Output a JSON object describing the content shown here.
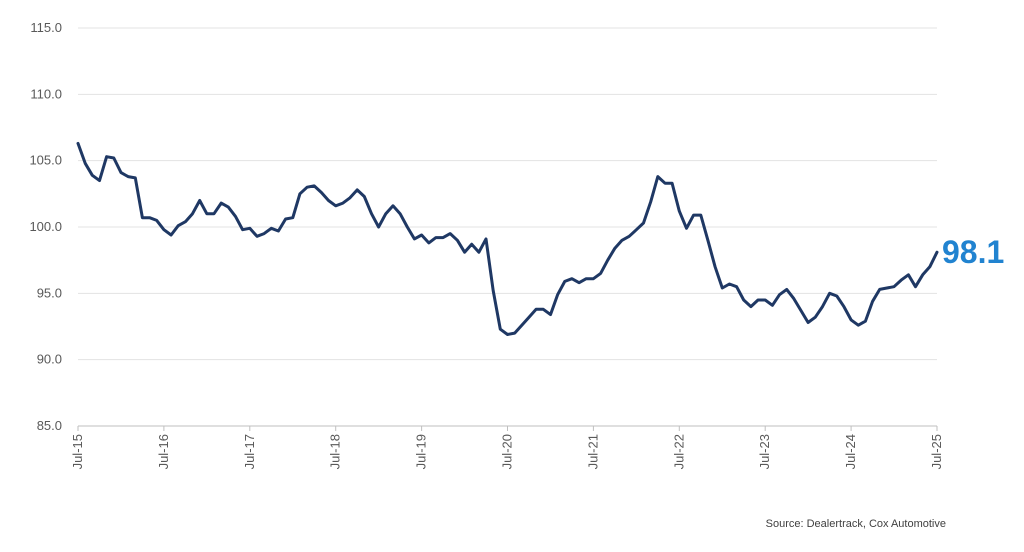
{
  "chart_data": {
    "type": "line",
    "title": "",
    "xlabel": "",
    "ylabel": "",
    "ylim": [
      85,
      115
    ],
    "yticks": [
      "115.0",
      "110.0",
      "105.0",
      "100.0",
      "95.0",
      "90.0",
      "85.0"
    ],
    "x_tick_labels": [
      "Jul-15",
      "Jul-16",
      "Jul-17",
      "Jul-18",
      "Jul-19",
      "Jul-20",
      "Jul-21",
      "Jul-22",
      "Jul-23",
      "Jul-24",
      "Jul-25"
    ],
    "x_start": "Jul-15",
    "x_end": "Jul-25",
    "grid": true,
    "legend": "none",
    "line_color": "#1f3864",
    "callout_color": "#2183d0",
    "last_value_label": "98.1",
    "series": [
      {
        "values": [
          106.3,
          104.8,
          103.9,
          103.5,
          105.3,
          105.2,
          104.1,
          103.8,
          103.7,
          100.7,
          100.7,
          100.5,
          99.8,
          99.4,
          100.1,
          100.4,
          101.0,
          102.0,
          101.0,
          101.0,
          101.8,
          101.5,
          100.8,
          99.8,
          99.9,
          99.3,
          99.5,
          99.9,
          99.7,
          100.6,
          100.7,
          102.5,
          103.0,
          103.1,
          102.6,
          102.0,
          101.6,
          101.8,
          102.2,
          102.8,
          102.3,
          101.0,
          100.0,
          101.0,
          101.6,
          101.0,
          100.0,
          99.1,
          99.4,
          98.8,
          99.2,
          99.2,
          99.5,
          99.0,
          98.1,
          98.7,
          98.1,
          99.1,
          95.2,
          92.3,
          91.9,
          92.0,
          92.6,
          93.2,
          93.8,
          93.8,
          93.4,
          94.9,
          95.9,
          96.1,
          95.8,
          96.1,
          96.1,
          96.5,
          97.5,
          98.4,
          99.0,
          99.3,
          99.8,
          100.3,
          101.9,
          103.8,
          103.3,
          103.3,
          101.2,
          99.9,
          100.9,
          100.9,
          99.0,
          97.0,
          95.4,
          95.7,
          95.5,
          94.5,
          94.0,
          94.5,
          94.5,
          94.1,
          94.9,
          95.3,
          94.6,
          93.7,
          92.8,
          93.2,
          94.0,
          95.0,
          94.8,
          94.0,
          93.0,
          92.6,
          92.9,
          94.4,
          95.3,
          95.4,
          95.5,
          96.0,
          96.4,
          95.5,
          96.4,
          97.0,
          98.1
        ]
      }
    ]
  },
  "source_text": "Source: Dealertrack, Cox Automotive"
}
